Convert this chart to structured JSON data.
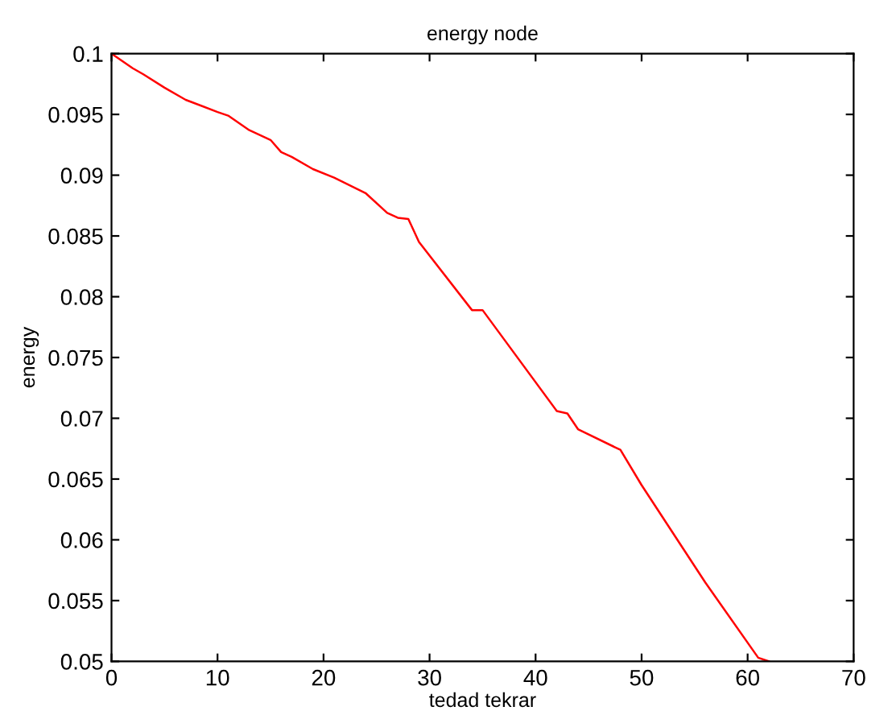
{
  "chart_data": {
    "type": "line",
    "title": "energy node",
    "xlabel": "tedad tekrar",
    "ylabel": "energy",
    "x": [
      0,
      2,
      3,
      5,
      7,
      10,
      11,
      13,
      15,
      16,
      17,
      19,
      21,
      24,
      26,
      27,
      28,
      29,
      34,
      35,
      42,
      43,
      44,
      48,
      50,
      56,
      61,
      62
    ],
    "series": [
      {
        "color": "#ff0000",
        "values": [
          0.1,
          0.0988,
          0.0983,
          0.0972,
          0.0962,
          0.0952,
          0.0949,
          0.0937,
          0.0929,
          0.0919,
          0.0915,
          0.0905,
          0.0898,
          0.0885,
          0.0869,
          0.0865,
          0.0864,
          0.0845,
          0.0789,
          0.0789,
          0.0706,
          0.0704,
          0.0691,
          0.0674,
          0.0645,
          0.0565,
          0.0503,
          0.05
        ]
      }
    ],
    "xlim": [
      0,
      70
    ],
    "xticks": [
      0,
      10,
      20,
      30,
      40,
      50,
      60,
      70
    ],
    "ylim": [
      0.05,
      0.1
    ],
    "yticks": [
      0.05,
      0.055,
      0.06,
      0.065,
      0.07,
      0.075,
      0.08,
      0.085,
      0.09,
      0.095,
      0.1
    ],
    "grid": false,
    "legend": false
  }
}
